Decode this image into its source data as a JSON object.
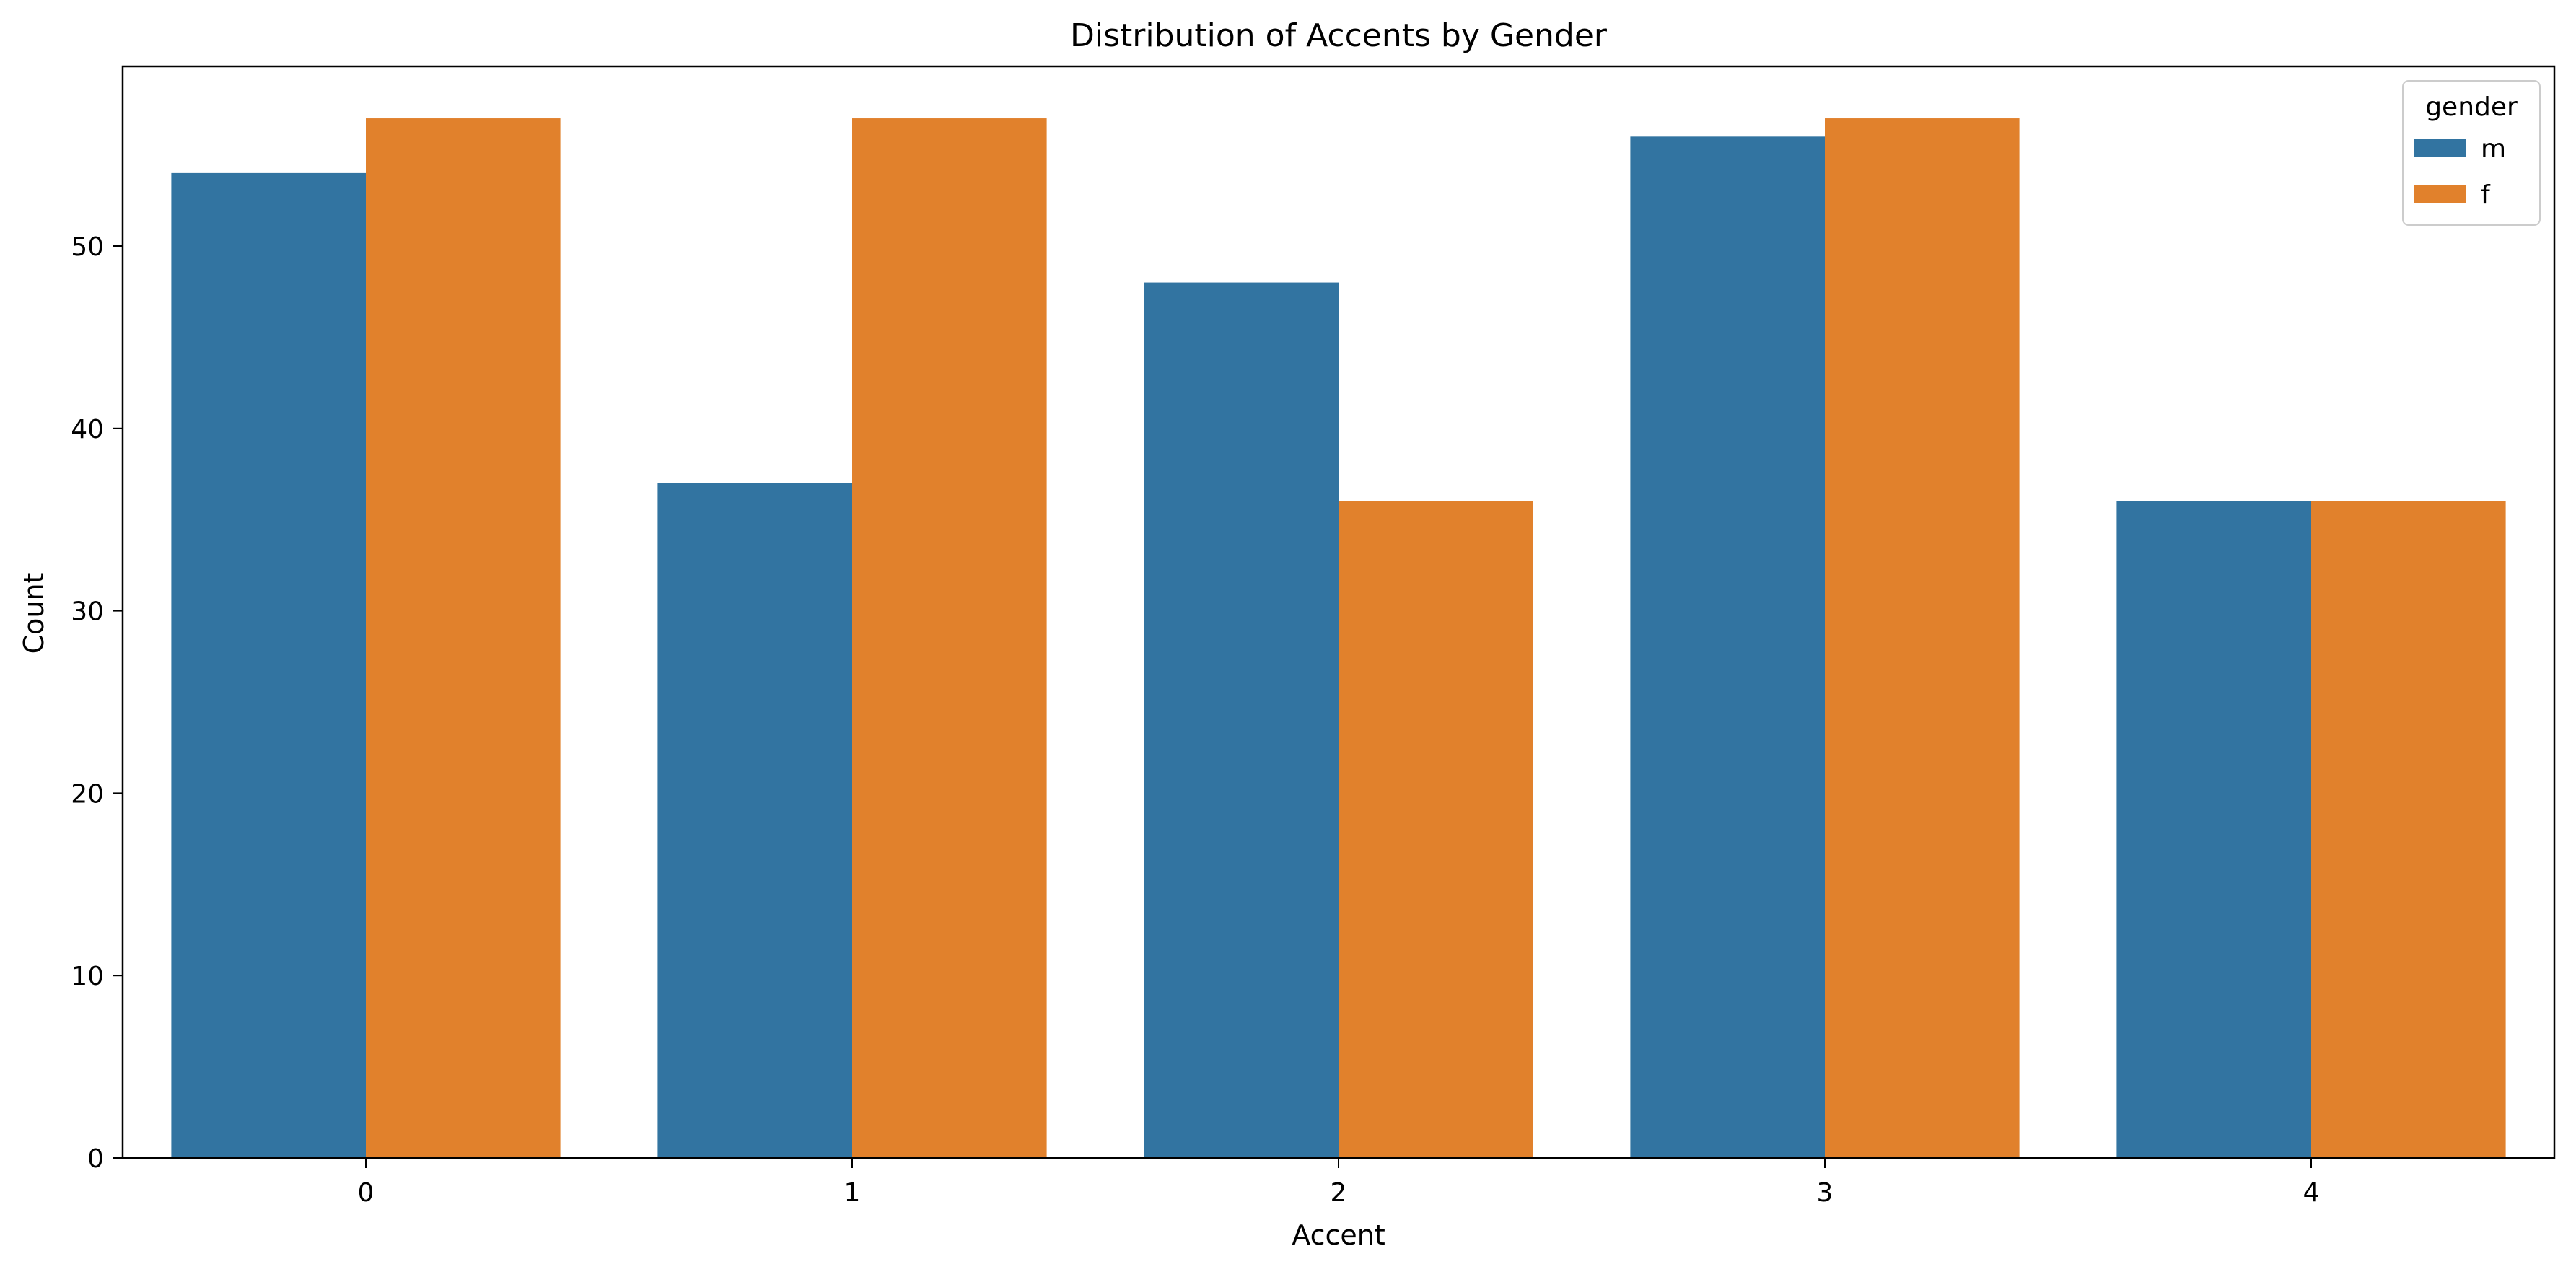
{
  "chart_data": {
    "type": "bar",
    "title": "Distribution of Accents by Gender",
    "xlabel": "Accent",
    "ylabel": "Count",
    "categories": [
      "0",
      "1",
      "2",
      "3",
      "4"
    ],
    "series": [
      {
        "name": "m",
        "values": [
          54,
          37,
          48,
          56,
          36
        ],
        "color": "#3274a1"
      },
      {
        "name": "f",
        "values": [
          57,
          57,
          36,
          57,
          36
        ],
        "color": "#e1812c"
      }
    ],
    "ylim": [
      0,
      59.85
    ],
    "yticks": [
      0,
      10,
      20,
      30,
      40,
      50
    ],
    "grid": false,
    "legend": {
      "title": "gender",
      "placement": "top-right"
    }
  }
}
